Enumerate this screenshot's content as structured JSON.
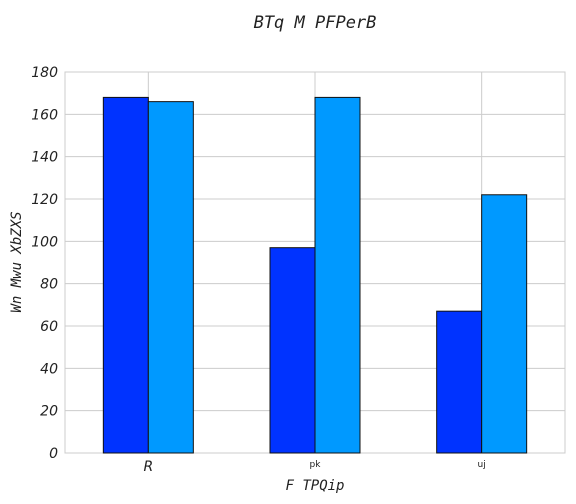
{
  "chart_data": {
    "type": "bar",
    "title": "BTq M PFPerB",
    "xlabel": "F TPQip",
    "ylabel": "Wn Mwu XbZXS",
    "categories": [
      "R",
      "pk",
      "uj"
    ],
    "series": [
      {
        "values": [
          168,
          97,
          67
        ],
        "color": "#0033ff"
      },
      {
        "values": [
          166,
          168,
          122
        ],
        "color": "#0099ff"
      }
    ],
    "ylim": [
      0,
      180
    ],
    "yticks": [
      0,
      20,
      40,
      60,
      80,
      100,
      120,
      140,
      160,
      180
    ],
    "grid": true,
    "legend": "none"
  }
}
